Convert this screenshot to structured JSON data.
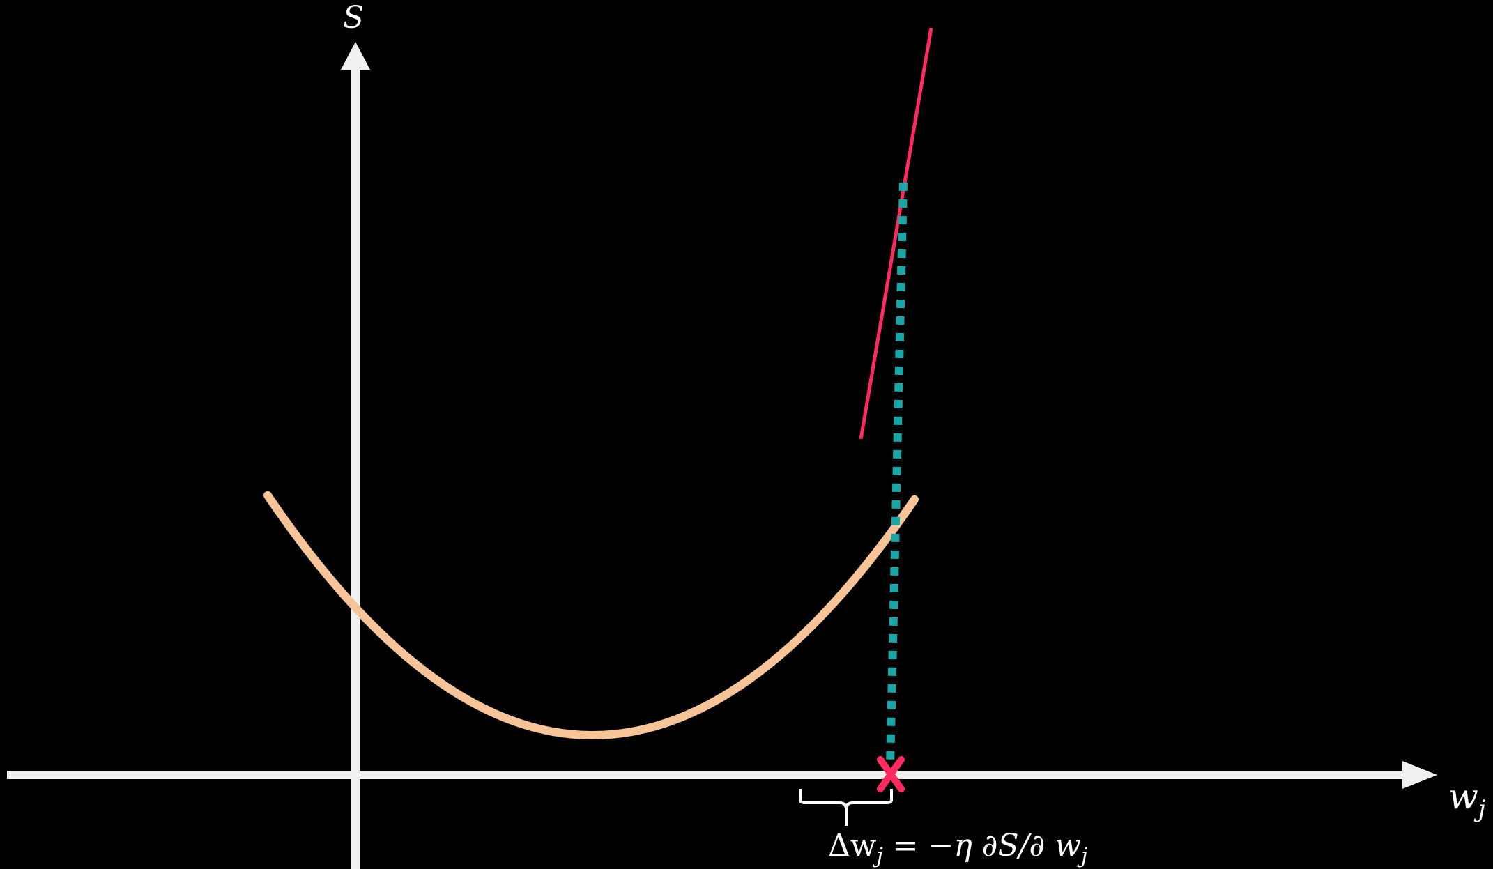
{
  "diagram": {
    "background_color": "#000000",
    "axes": {
      "color": "#f0f0f0",
      "y_label": "S",
      "x_label": "w",
      "x_label_subscript": "j"
    },
    "curve": {
      "color": "#f7c497",
      "shape": "parabola"
    },
    "tangent": {
      "color": "#ff2a5f"
    },
    "drop_line": {
      "color": "#1aa6a6",
      "style": "dotted"
    },
    "marker": {
      "symbol": "X",
      "color": "#ff2a5f"
    },
    "update_rule": {
      "text": "Δw",
      "text_sub": "j",
      "text_rest": " = −η ∂S/∂ w",
      "text_rest_sub": "j"
    }
  }
}
